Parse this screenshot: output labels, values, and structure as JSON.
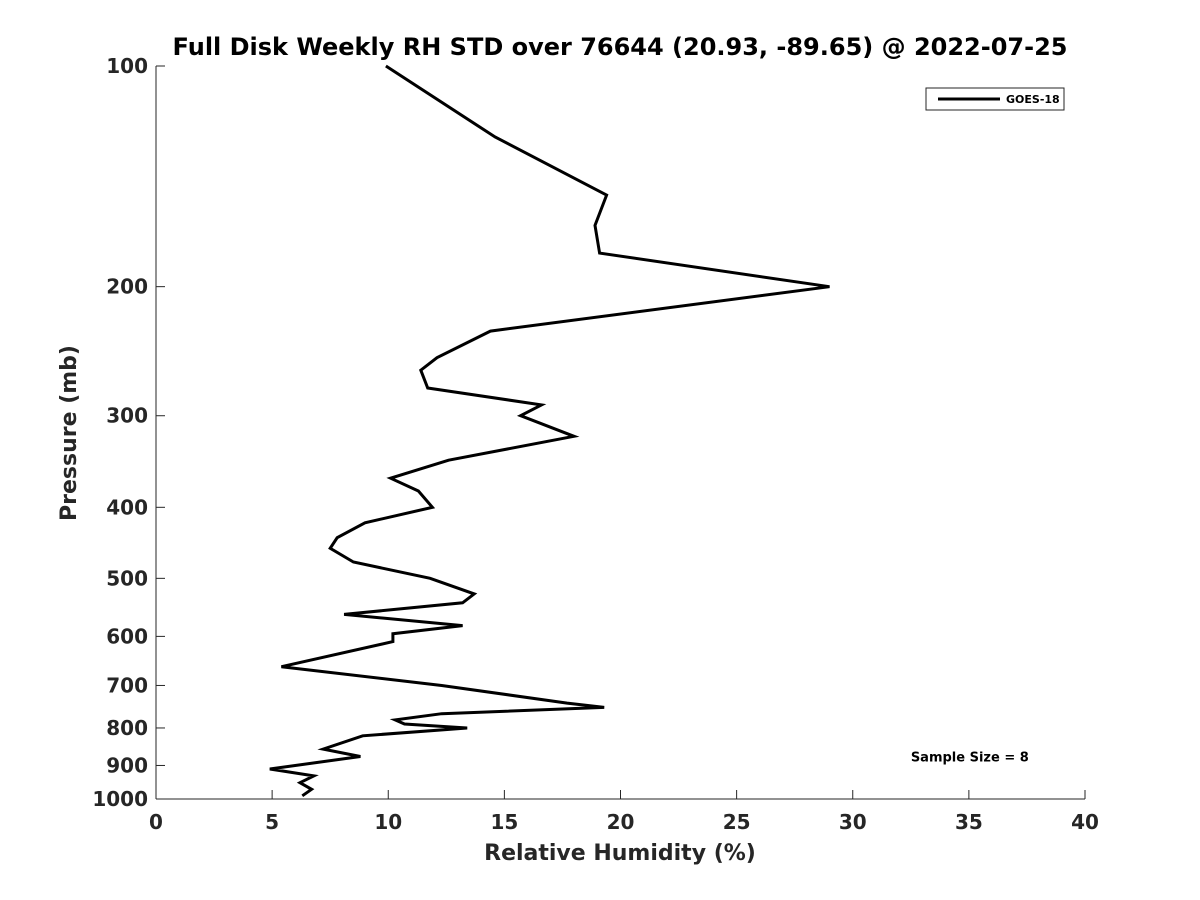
{
  "chart_data": {
    "type": "line",
    "title": "Full Disk Weekly RH STD over 76644 (20.93, -89.65) @ 2022-07-25",
    "xlabel": "Relative Humidity (%)",
    "ylabel": "Pressure (mb)",
    "xlim": [
      0,
      40
    ],
    "ylim": [
      100,
      1000
    ],
    "y_scale": "log",
    "y_reversed": true,
    "x_ticks": [
      0,
      5,
      10,
      15,
      20,
      25,
      30,
      35,
      40
    ],
    "x_tick_labels": [
      "0",
      "5",
      "10",
      "15",
      "20",
      "25",
      "30",
      "35",
      "40"
    ],
    "y_ticks": [
      100,
      200,
      300,
      400,
      500,
      600,
      700,
      800,
      900,
      1000
    ],
    "y_tick_labels": [
      "100",
      "200",
      "300",
      "400",
      "500",
      "600",
      "700",
      "800",
      "900",
      "1000"
    ],
    "grid": false,
    "legend_position": "top-right",
    "series": [
      {
        "name": "GOES-18",
        "color": "#000000",
        "x": [
          9.9,
          14.6,
          19.4,
          18.9,
          19.1,
          29.0,
          14.4,
          12.1,
          11.4,
          11.7,
          16.6,
          15.7,
          18.0,
          12.6,
          10.1,
          11.3,
          11.9,
          9.0,
          7.8,
          7.5,
          8.5,
          11.8,
          13.7,
          13.2,
          8.1,
          13.2,
          10.2,
          10.2,
          5.4,
          12.3,
          17.7,
          19.3,
          12.3,
          10.3,
          10.7,
          13.4,
          8.9,
          7.2,
          8.8,
          4.9,
          6.8,
          6.2,
          6.7,
          6.3
        ],
        "y": [
          100,
          125,
          150,
          165,
          180,
          200,
          230,
          250,
          260,
          275,
          290,
          300,
          320,
          345,
          365,
          380,
          400,
          420,
          440,
          455,
          475,
          500,
          525,
          540,
          560,
          580,
          595,
          610,
          660,
          700,
          740,
          750,
          765,
          780,
          790,
          800,
          820,
          855,
          875,
          910,
          930,
          950,
          970,
          990
        ]
      }
    ],
    "annotations": [
      {
        "text": "Sample Size = 8",
        "x": 32.5,
        "y": 875
      }
    ]
  }
}
